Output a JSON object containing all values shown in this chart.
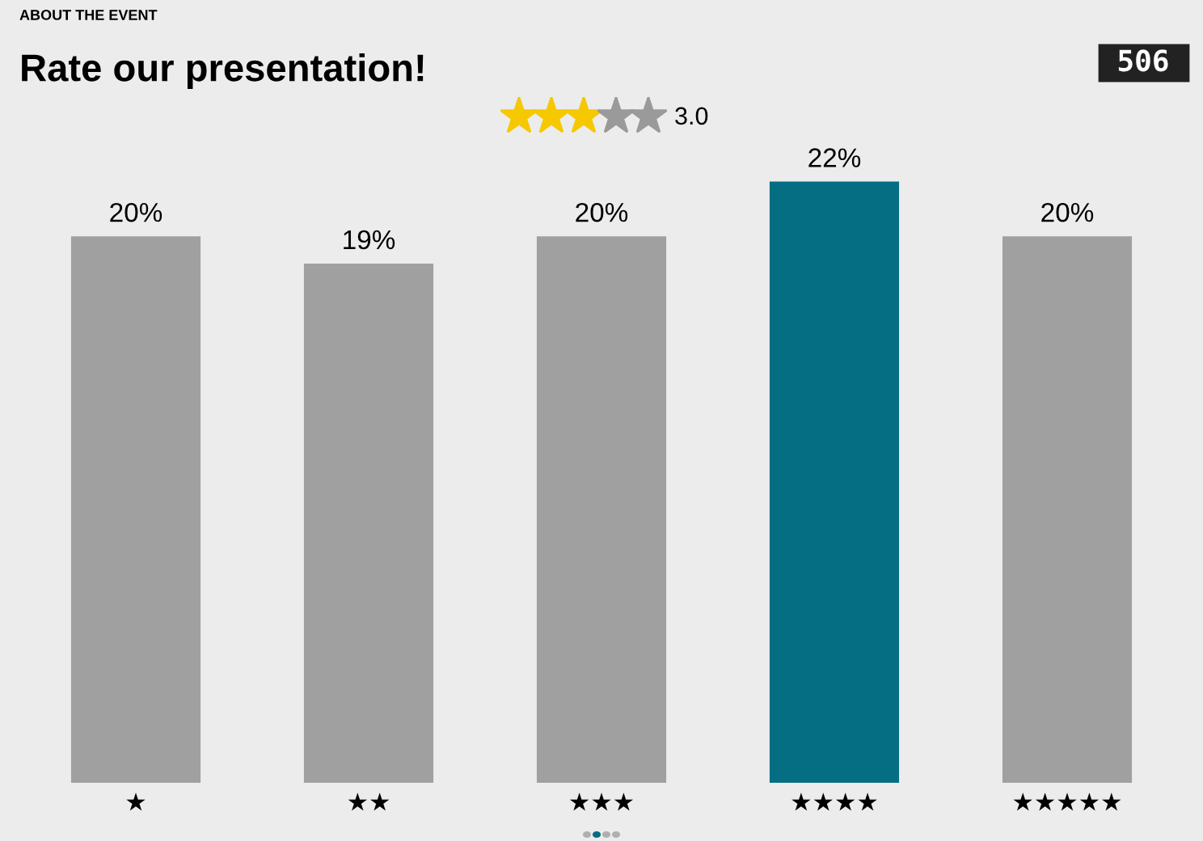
{
  "chart_data": {
    "type": "bar",
    "title": "Rate our presentation!",
    "annotations": [
      "ABOUT THE EVENT",
      "3.0",
      "506"
    ],
    "categories": [
      "★",
      "★★",
      "★★★",
      "★★★★",
      "★★★★★"
    ],
    "values": [
      20,
      19,
      20,
      22,
      20
    ],
    "colors": [
      "#a0a0a0",
      "#a0a0a0",
      "#a0a0a0",
      "#066e82",
      "#a0a0a0"
    ],
    "value_labels": [
      "20%",
      "19%",
      "20%",
      "22%",
      "20%"
    ]
  }
}
